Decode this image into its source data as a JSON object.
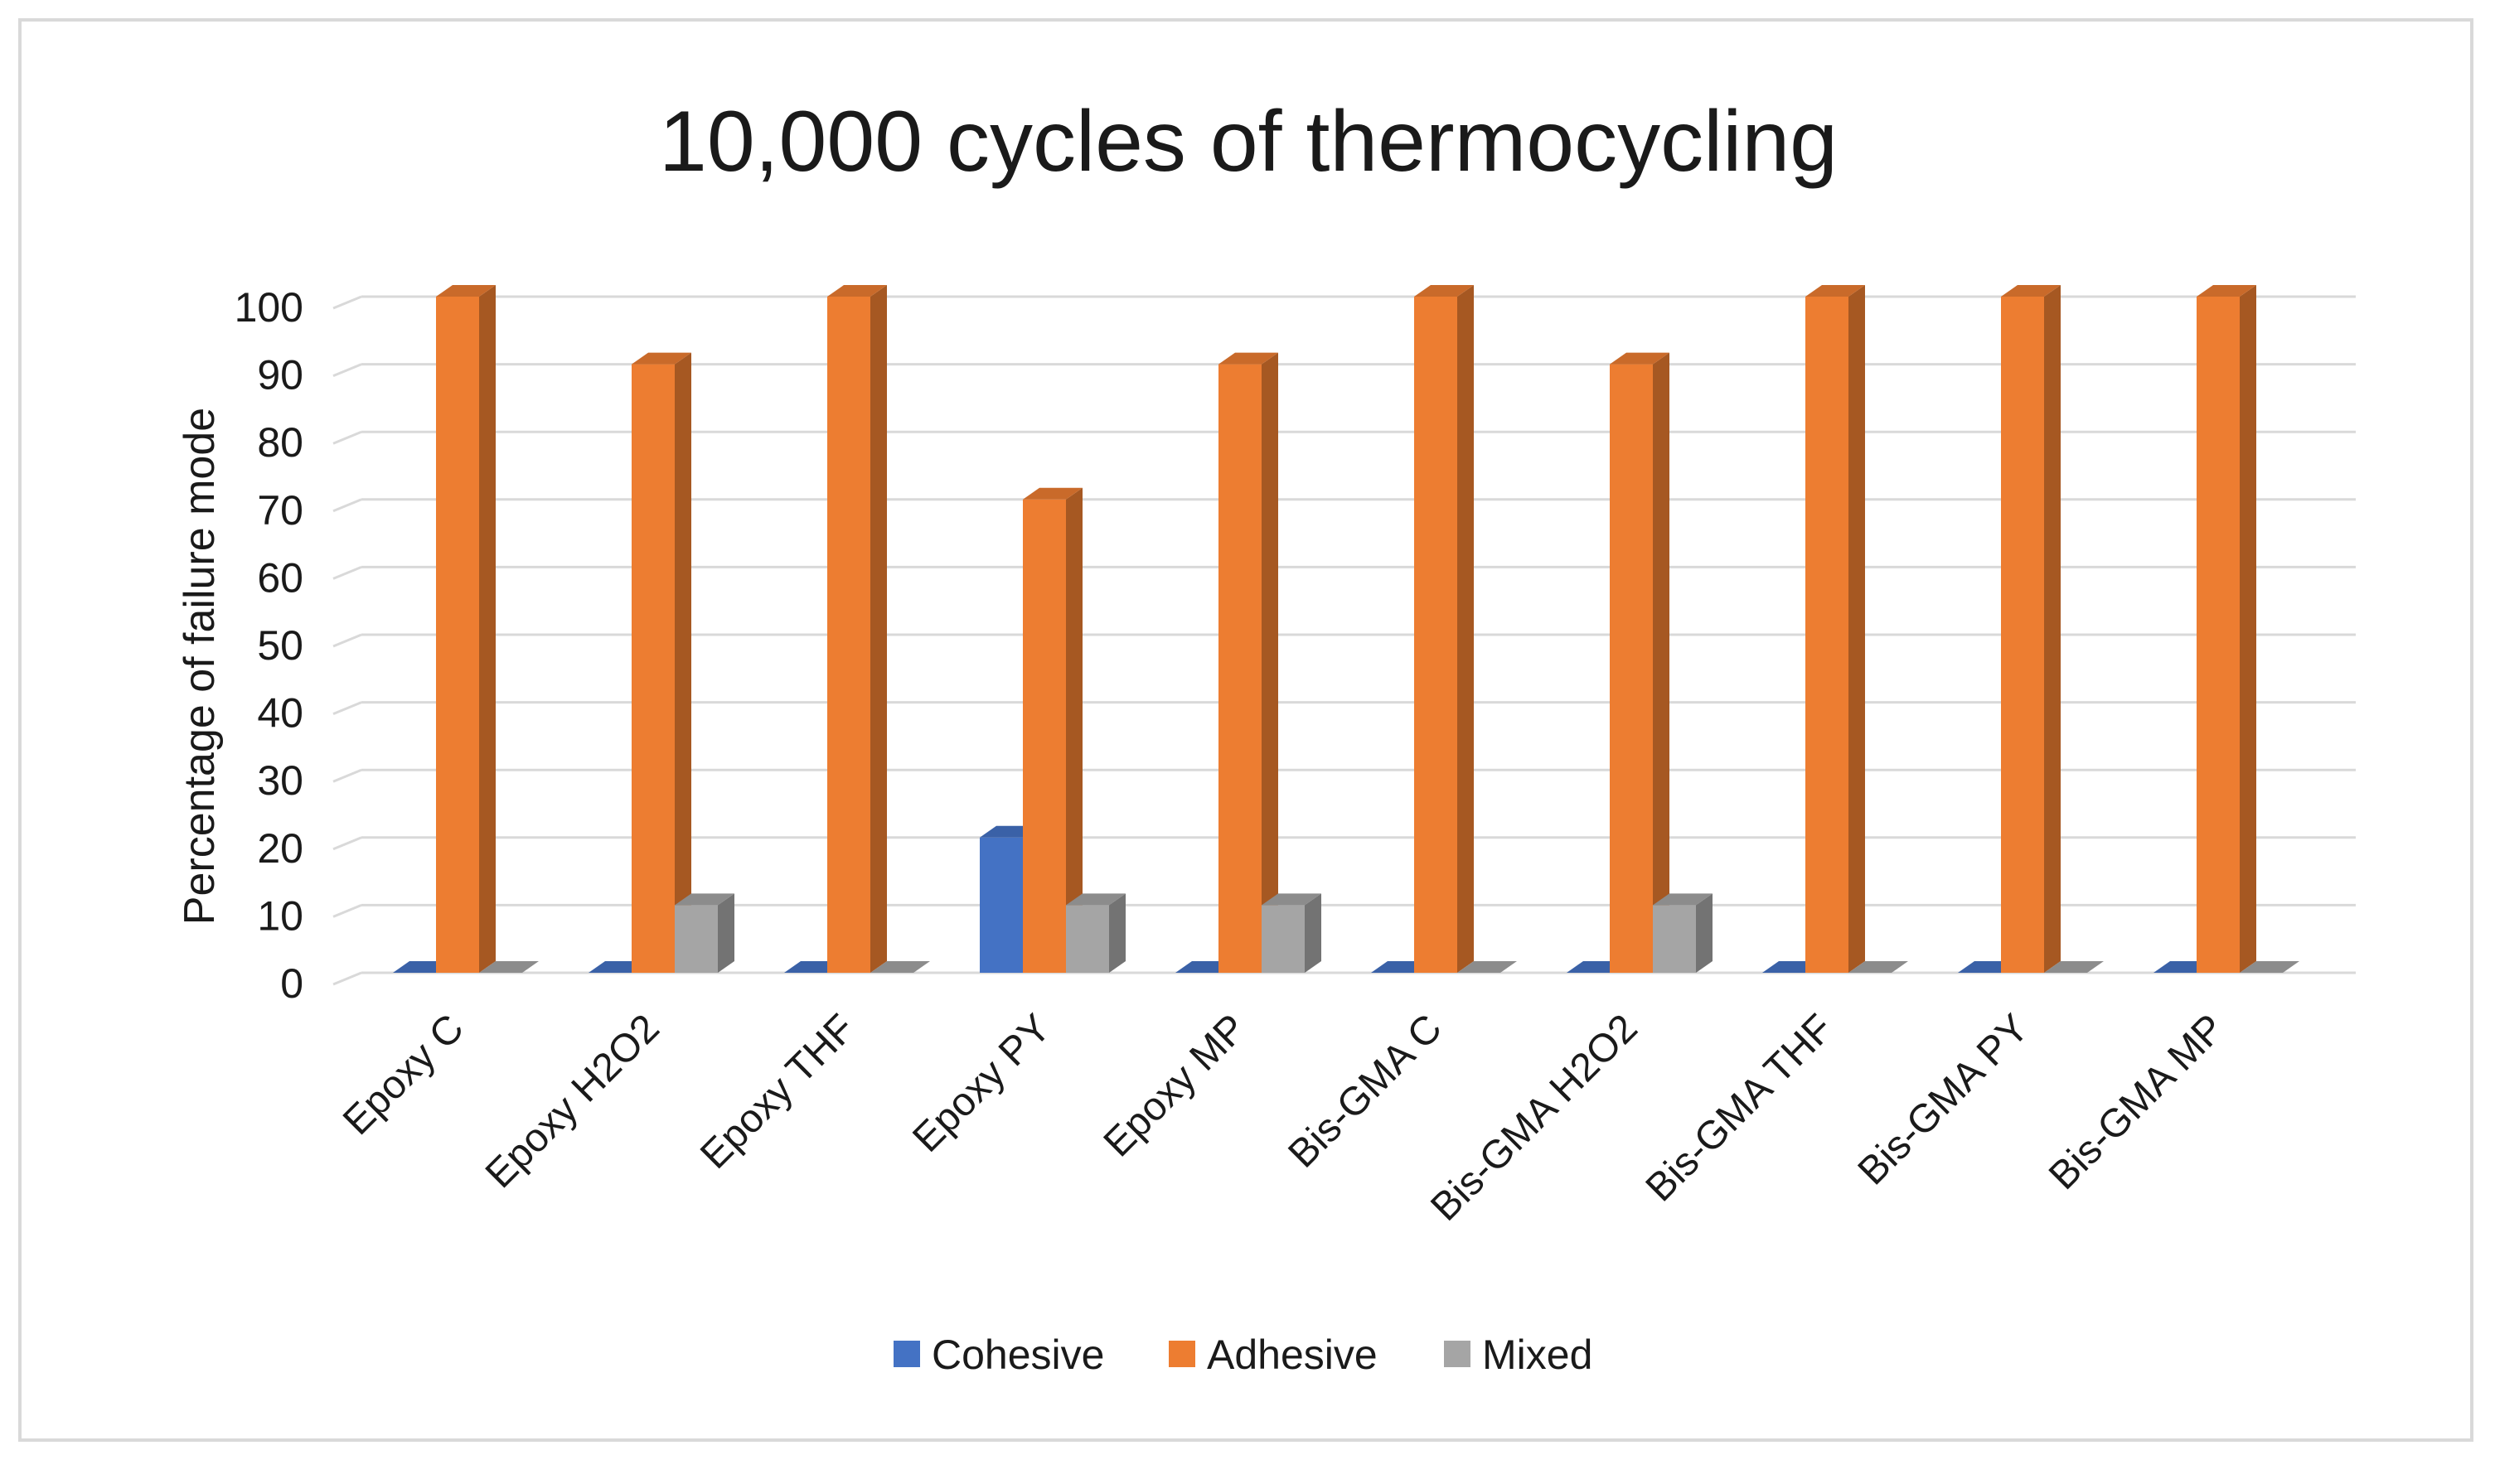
{
  "chart_data": {
    "type": "bar",
    "title": "10,000 cycles of thermocycling",
    "xlabel": "",
    "ylabel": "Percentage of failure mode",
    "ylim": [
      0,
      100
    ],
    "yticks": [
      0,
      10,
      20,
      30,
      40,
      50,
      60,
      70,
      80,
      90,
      100
    ],
    "grid": true,
    "legend_position": "bottom",
    "categories": [
      "Epoxy C",
      "Epoxy H2O2",
      "Epoxy THF",
      "Epoxy PY",
      "Epoxy MP",
      "Bis-GMA C",
      "Bis-GMA H2O2",
      "Bis-GMA THF",
      "Bis-GMA PY",
      "Bis-GMA MP"
    ],
    "series": [
      {
        "name": "Cohesive",
        "color": "#4472c4",
        "values": [
          0,
          0,
          0,
          20,
          0,
          0,
          0,
          0,
          0,
          0
        ]
      },
      {
        "name": "Adhesive",
        "color": "#ed7d31",
        "values": [
          100,
          90,
          100,
          70,
          90,
          100,
          90,
          100,
          100,
          100
        ]
      },
      {
        "name": "Mixed",
        "color": "#a5a5a5",
        "values": [
          0,
          10,
          0,
          10,
          10,
          0,
          10,
          0,
          0,
          0
        ]
      }
    ]
  }
}
